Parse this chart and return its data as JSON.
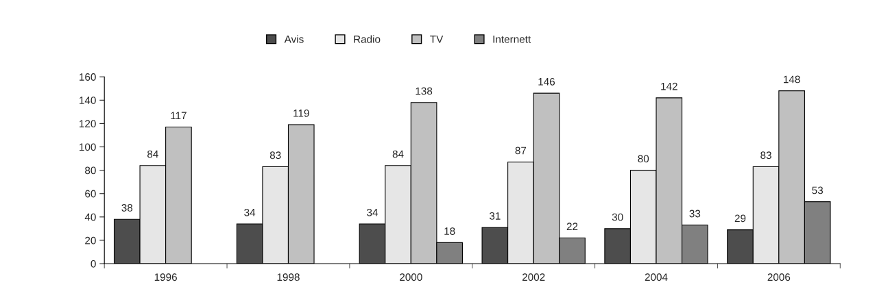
{
  "chart_data": {
    "type": "bar",
    "categories": [
      "1996",
      "1998",
      "2000",
      "2002",
      "2004",
      "2006"
    ],
    "series": [
      {
        "name": "Avis",
        "color": "#4d4d4d",
        "values": [
          38,
          34,
          34,
          31,
          30,
          29
        ]
      },
      {
        "name": "Radio",
        "color": "#e6e6e6",
        "values": [
          84,
          83,
          84,
          87,
          80,
          83
        ]
      },
      {
        "name": "TV",
        "color": "#c0c0c0",
        "values": [
          117,
          119,
          138,
          146,
          142,
          148
        ]
      },
      {
        "name": "Internett",
        "color": "#808080",
        "values": [
          null,
          null,
          18,
          22,
          33,
          53
        ]
      }
    ],
    "ylim": [
      0,
      160
    ],
    "yticks": [
      0,
      20,
      40,
      60,
      80,
      100,
      120,
      140,
      160
    ],
    "data_labels": true,
    "grid": false,
    "legend": "top"
  }
}
